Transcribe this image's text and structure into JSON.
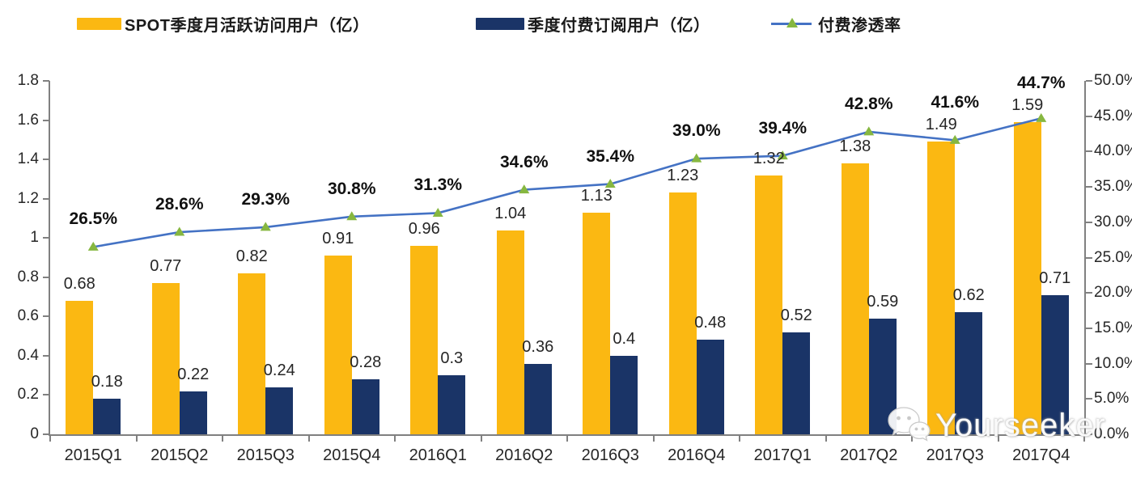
{
  "chart_data": {
    "type": "combo",
    "title": "",
    "categories": [
      "2015Q1",
      "2015Q2",
      "2015Q3",
      "2015Q4",
      "2016Q1",
      "2016Q2",
      "2016Q3",
      "2016Q4",
      "2017Q1",
      "2017Q2",
      "2017Q3",
      "2017Q4"
    ],
    "series": [
      {
        "name": "SPOT季度月活跃访问用户（亿）",
        "type": "bar",
        "axis": "left",
        "color": "#FBB812",
        "values": [
          0.68,
          0.77,
          0.82,
          0.91,
          0.96,
          1.04,
          1.13,
          1.23,
          1.32,
          1.38,
          1.49,
          1.59
        ],
        "labels": [
          "0.68",
          "0.77",
          "0.82",
          "0.91",
          "0.96",
          "1.04",
          "1.13",
          "1.23",
          "1.32",
          "1.38",
          "1.49",
          "1.59"
        ]
      },
      {
        "name": "季度付费订阅用户（亿）",
        "type": "bar",
        "axis": "left",
        "color": "#1A3467",
        "values": [
          0.18,
          0.22,
          0.24,
          0.28,
          0.3,
          0.36,
          0.4,
          0.48,
          0.52,
          0.59,
          0.62,
          0.71
        ],
        "labels": [
          "0.18",
          "0.22",
          "0.24",
          "0.28",
          "0.3",
          "0.36",
          "0.4",
          "0.48",
          "0.52",
          "0.59",
          "0.62",
          "0.71"
        ]
      },
      {
        "name": "付费渗透率",
        "type": "line",
        "axis": "right",
        "color": "#4472C4",
        "marker": "triangle",
        "marker_color": "#86B740",
        "values": [
          26.5,
          28.6,
          29.3,
          30.8,
          31.3,
          34.6,
          35.4,
          39.0,
          39.4,
          42.8,
          41.6,
          44.7
        ],
        "labels": [
          "26.5%",
          "28.6%",
          "29.3%",
          "30.8%",
          "31.3%",
          "34.6%",
          "35.4%",
          "39.0%",
          "39.4%",
          "42.8%",
          "41.6%",
          "44.7%"
        ]
      }
    ],
    "left_axis": {
      "min": 0,
      "max": 1.8,
      "tick_labels": [
        "0",
        "0.2",
        "0.4",
        "0.6",
        "0.8",
        "1",
        "1.2",
        "1.4",
        "1.6",
        "1.8"
      ]
    },
    "right_axis": {
      "min": 0,
      "max": 50,
      "tick_labels": [
        "0.0%",
        "5.0%",
        "10.0%",
        "15.0%",
        "20.0%",
        "25.0%",
        "30.0%",
        "35.0%",
        "40.0%",
        "45.0%",
        "50.0%"
      ]
    },
    "grid": false,
    "legend_position": "top",
    "background": "#FFFFFF"
  },
  "watermark": {
    "text": "Yourseeker",
    "icon": "wechat-chat-bubbles"
  }
}
